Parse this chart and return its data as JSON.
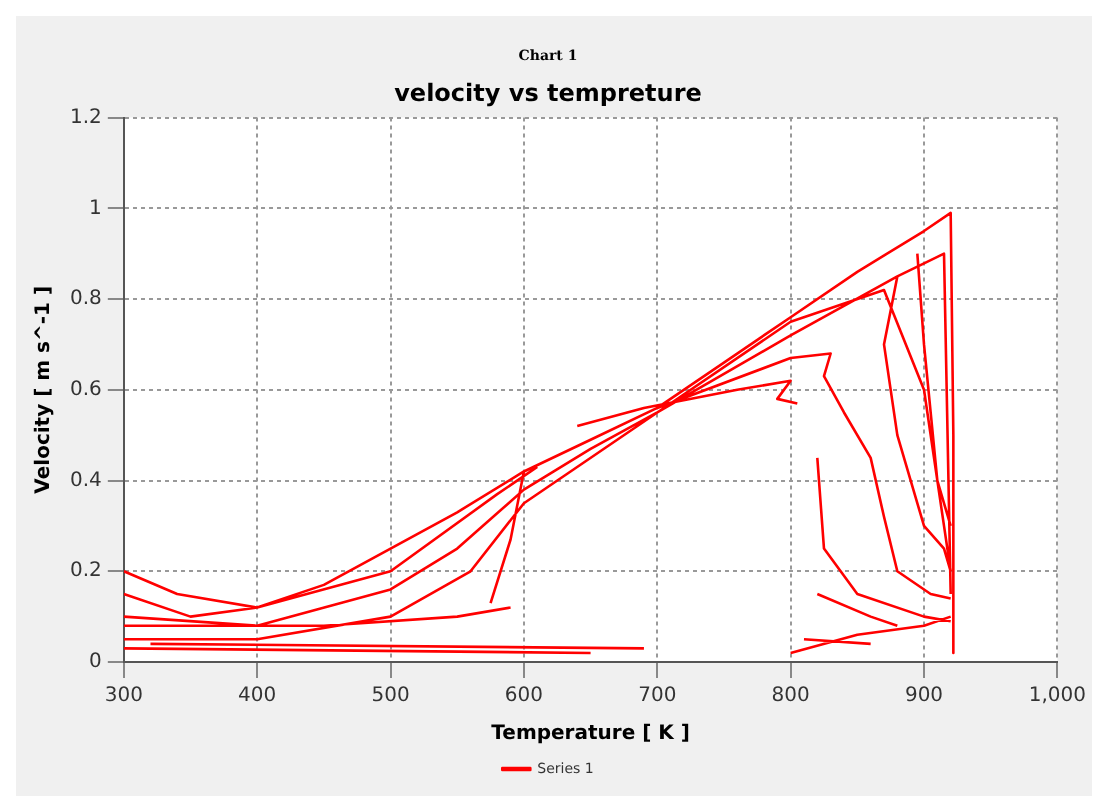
{
  "chart_data": {
    "type": "line",
    "subtitle": "Chart 1",
    "title": "velocity vs tempreture",
    "xlabel": "Temperature [ K ]",
    "ylabel": "Velocity [ m s^-1 ]",
    "xlim": [
      300,
      1000
    ],
    "xticks": [
      300,
      400,
      500,
      600,
      700,
      800,
      900,
      {
        "value": 1000,
        "label": "1,000"
      }
    ],
    "ylim": [
      0,
      1.2
    ],
    "yticks": [
      0,
      0.2,
      0.4,
      0.6,
      0.8,
      1,
      1.2
    ],
    "grid": true,
    "legend": "bottom",
    "marker": "none",
    "line_style": "solid",
    "series": [
      {
        "name": "Series 1",
        "color": "#ff0000",
        "x": [
          300,
          350,
          400,
          450,
          500,
          550,
          600,
          650,
          700,
          750,
          800,
          850,
          900,
          920,
          922,
          922,
          null,
          300,
          400,
          500,
          550,
          600,
          650,
          700,
          800,
          880,
          915,
          920,
          null,
          300,
          400,
          500,
          560,
          600,
          700,
          800,
          870,
          900,
          915,
          920,
          null,
          300,
          650,
          null,
          320,
          690,
          null,
          300,
          340,
          400,
          500,
          580,
          610,
          null,
          300,
          450,
          550,
          590,
          null,
          600,
          590,
          575,
          null,
          640,
          690,
          760,
          800,
          790,
          805,
          null,
          700,
          800,
          830,
          825,
          840,
          860,
          870,
          880,
          905,
          920,
          null,
          820,
          825,
          850,
          900,
          920,
          null,
          800,
          850,
          900,
          920,
          null,
          810,
          860,
          null,
          820,
          860,
          880,
          null,
          880,
          870,
          880,
          900,
          915,
          920,
          null,
          895,
          900,
          910,
          920
        ],
        "values": [
          0.15,
          0.1,
          0.12,
          0.17,
          0.25,
          0.33,
          0.42,
          0.49,
          0.56,
          0.66,
          0.76,
          0.86,
          0.95,
          0.99,
          0.5,
          0.02,
          null,
          0.1,
          0.08,
          0.16,
          0.25,
          0.38,
          0.47,
          0.55,
          0.72,
          0.85,
          0.9,
          0.15,
          null,
          0.05,
          0.05,
          0.1,
          0.2,
          0.35,
          0.55,
          0.75,
          0.82,
          0.6,
          0.3,
          0.2,
          null,
          0.03,
          0.02,
          null,
          0.04,
          0.03,
          null,
          0.2,
          0.15,
          0.12,
          0.2,
          0.37,
          0.43,
          null,
          0.08,
          0.08,
          0.1,
          0.12,
          null,
          0.42,
          0.27,
          0.13,
          null,
          0.52,
          0.56,
          0.6,
          0.62,
          0.58,
          0.57,
          null,
          0.56,
          0.67,
          0.68,
          0.63,
          0.55,
          0.45,
          0.32,
          0.2,
          0.15,
          0.14,
          null,
          0.45,
          0.25,
          0.15,
          0.1,
          0.09,
          null,
          0.02,
          0.06,
          0.08,
          0.1,
          null,
          0.05,
          0.04,
          null,
          0.15,
          0.1,
          0.08,
          null,
          0.85,
          0.7,
          0.5,
          0.3,
          0.25,
          0.2,
          null,
          0.9,
          0.7,
          0.4,
          0.3
        ]
      }
    ]
  }
}
